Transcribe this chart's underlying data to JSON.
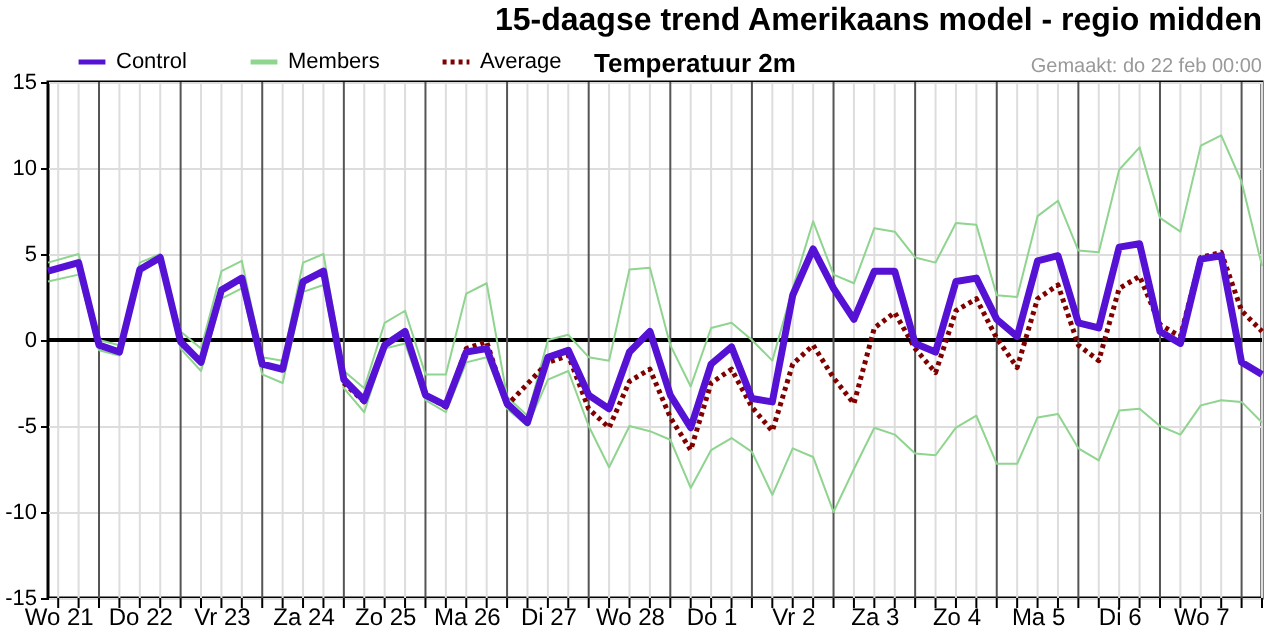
{
  "chart_data": {
    "type": "line",
    "title": "15-daagse trend Amerikaans model - regio midden",
    "subtitle": "Temperatuur 2m",
    "annotations": [
      "Gemaakt: do 22 feb 00:00"
    ],
    "x": [
      "--02-21T09:00",
      "--02-21T18:00",
      "--02-22T00:00",
      "--02-22T06:00",
      "--02-22T12:00",
      "--02-22T18:00",
      "--02-23T00:00",
      "--02-23T06:00",
      "--02-23T12:00",
      "--02-23T18:00",
      "--02-24T00:00",
      "--02-24T06:00",
      "--02-24T12:00",
      "--02-24T18:00",
      "--02-25T00:00",
      "--02-25T06:00",
      "--02-25T12:00",
      "--02-25T18:00",
      "--02-26T00:00",
      "--02-26T06:00",
      "--02-26T12:00",
      "--02-26T18:00",
      "--02-27T00:00",
      "--02-27T06:00",
      "--02-27T12:00",
      "--02-27T18:00",
      "--02-28T00:00",
      "--02-28T06:00",
      "--02-28T12:00",
      "--02-28T18:00",
      "--03-01T00:00",
      "--03-01T06:00",
      "--03-01T12:00",
      "--03-01T18:00",
      "--03-02T00:00",
      "--03-02T06:00",
      "--03-02T12:00",
      "--03-02T18:00",
      "--03-03T00:00",
      "--03-03T06:00",
      "--03-03T12:00",
      "--03-03T18:00",
      "--03-04T00:00",
      "--03-04T06:00",
      "--03-04T12:00",
      "--03-04T18:00",
      "--03-05T00:00",
      "--03-05T06:00",
      "--03-05T12:00",
      "--03-05T18:00",
      "--03-06T00:00",
      "--03-06T06:00",
      "--03-06T12:00",
      "--03-06T18:00",
      "--03-07T00:00",
      "--03-07T06:00",
      "--03-07T12:00",
      "--03-07T18:00",
      "--03-08T00:00",
      "--03-08T06:00"
    ],
    "series": [
      {
        "name": "Control",
        "color": "#5511d4",
        "line_style": "solid",
        "values": [
          4.0,
          4.5,
          -0.3,
          -0.7,
          4.1,
          4.8,
          -0.1,
          -1.3,
          2.9,
          3.6,
          -1.4,
          -1.7,
          3.4,
          4.0,
          -2.3,
          -3.5,
          -0.3,
          0.5,
          -3.2,
          -3.8,
          -0.7,
          -0.5,
          -3.7,
          -4.8,
          -1.0,
          -0.6,
          -3.2,
          -4.0,
          -0.7,
          0.5,
          -3.2,
          -5.1,
          -1.4,
          -0.4,
          -3.4,
          -3.6,
          2.6,
          5.3,
          3.0,
          1.2,
          4.0,
          4.0,
          -0.2,
          -0.7,
          3.4,
          3.6,
          1.2,
          0.2,
          4.6,
          4.9,
          1.0,
          0.7,
          5.4,
          5.6,
          0.5,
          -0.2,
          4.7,
          4.9,
          -1.3,
          -2.0
        ]
      },
      {
        "name": "Members",
        "color": "#8fd48f",
        "line_style": "solid",
        "values": [
          4.5,
          5.0,
          0.0,
          -0.3,
          4.5,
          5.0,
          0.5,
          -0.5,
          4.0,
          4.6,
          -1.0,
          -1.2,
          4.5,
          5.0,
          -1.8,
          -2.8,
          1.0,
          1.7,
          -2.0,
          -2.0,
          2.7,
          3.3,
          -3.3,
          -4.4,
          0.0,
          0.3,
          -1.0,
          -1.2,
          4.1,
          4.2,
          -0.3,
          -2.7,
          0.7,
          1.0,
          0.0,
          -1.2,
          3.0,
          6.9,
          3.8,
          3.3,
          6.5,
          6.3,
          4.8,
          4.5,
          6.8,
          6.7,
          2.6,
          2.5,
          7.2,
          8.1,
          5.2,
          5.1,
          9.9,
          11.2,
          7.1,
          6.3,
          11.3,
          11.9,
          9.2,
          4.3
        ]
      },
      {
        "color": "#8fd48f",
        "line_style": "solid",
        "values": [
          3.4,
          3.8,
          -0.6,
          -0.9,
          4.0,
          4.6,
          -0.5,
          -1.8,
          2.4,
          3.0,
          -2.0,
          -2.5,
          2.8,
          3.2,
          -2.8,
          -4.2,
          -0.5,
          -0.2,
          -3.5,
          -4.2,
          -1.3,
          -1.0,
          -4.0,
          -5.0,
          -2.3,
          -1.8,
          -5.0,
          -7.4,
          -5.0,
          -5.3,
          -5.8,
          -8.6,
          -6.4,
          -5.7,
          -6.5,
          -9.0,
          -6.3,
          -6.8,
          -10.0,
          -7.5,
          -5.1,
          -5.5,
          -6.6,
          -6.7,
          -5.1,
          -4.4,
          -7.2,
          -7.2,
          -4.5,
          -4.3,
          -6.3,
          -7.0,
          -4.1,
          -4.0,
          -5.0,
          -5.5,
          -3.8,
          -3.5,
          -3.6,
          -4.8
        ]
      },
      {
        "name": "Average",
        "color": "#800000",
        "line_style": "dotted",
        "values": [
          null,
          null,
          null,
          null,
          null,
          null,
          null,
          null,
          null,
          null,
          null,
          null,
          null,
          null,
          -2.5,
          -3.6,
          -0.3,
          0.5,
          -3.2,
          -3.9,
          -0.5,
          -0.1,
          -3.8,
          null,
          -1.3,
          -0.9,
          -4.0,
          -5.1,
          -2.4,
          -1.7,
          -4.5,
          -6.4,
          -2.5,
          -1.7,
          -3.9,
          -5.3,
          -1.4,
          -0.3,
          -2.2,
          -3.7,
          0.7,
          1.6,
          -0.5,
          -1.9,
          1.7,
          2.4,
          0.1,
          -1.6,
          2.4,
          3.2,
          -0.3,
          -1.2,
          3.0,
          3.7,
          0.9,
          0.2,
          4.8,
          5.1,
          1.7,
          0.5
        ]
      }
    ],
    "xlim": [
      "--02-21T09:00",
      "--03-08T06:00"
    ],
    "ylim": [
      -15,
      15
    ],
    "yticks": [
      -15,
      -10,
      -5,
      0,
      5,
      10,
      15
    ],
    "xticks": [
      {
        "value": "--02-21T12:00",
        "label": "Wo 21"
      },
      {
        "value": "--02-21T18:00",
        "label": null
      },
      {
        "value": "--02-22T06:00",
        "label": null
      },
      {
        "value": "--02-22T12:00",
        "label": "Do 22"
      },
      {
        "value": "--02-22T18:00",
        "label": null
      },
      {
        "value": "--02-23T06:00",
        "label": null
      },
      {
        "value": "--02-23T12:00",
        "label": "Vr 23"
      },
      {
        "value": "--02-23T18:00",
        "label": null
      },
      {
        "value": "--02-24T06:00",
        "label": null
      },
      {
        "value": "--02-24T12:00",
        "label": "Za 24"
      },
      {
        "value": "--02-24T18:00",
        "label": null
      },
      {
        "value": "--02-25T06:00",
        "label": null
      },
      {
        "value": "--02-25T12:00",
        "label": "Zo 25"
      },
      {
        "value": "--02-25T18:00",
        "label": null
      },
      {
        "value": "--02-26T06:00",
        "label": null
      },
      {
        "value": "--02-26T12:00",
        "label": "Ma 26"
      },
      {
        "value": "--02-26T18:00",
        "label": null
      },
      {
        "value": "--02-27T06:00",
        "label": null
      },
      {
        "value": "--02-27T12:00",
        "label": "Di 27"
      },
      {
        "value": "--02-27T18:00",
        "label": null
      },
      {
        "value": "--02-28T06:00",
        "label": null
      },
      {
        "value": "--02-28T12:00",
        "label": "Wo 28"
      },
      {
        "value": "--02-28T18:00",
        "label": null
      },
      {
        "value": "--03-01T06:00",
        "label": null
      },
      {
        "value": "--03-01T12:00",
        "label": "Do 1"
      },
      {
        "value": "--03-01T18:00",
        "label": null
      },
      {
        "value": "--03-02T06:00",
        "label": null
      },
      {
        "value": "--03-02T12:00",
        "label": "Vr 2"
      },
      {
        "value": "--03-02T18:00",
        "label": null
      },
      {
        "value": "--03-03T06:00",
        "label": null
      },
      {
        "value": "--03-03T12:00",
        "label": "Za 3"
      },
      {
        "value": "--03-03T18:00",
        "label": null
      },
      {
        "value": "--03-04T06:00",
        "label": null
      },
      {
        "value": "--03-04T12:00",
        "label": "Zo 4"
      },
      {
        "value": "--03-04T18:00",
        "label": null
      },
      {
        "value": "--03-05T06:00",
        "label": null
      },
      {
        "value": "--03-05T12:00",
        "label": "Ma 5"
      },
      {
        "value": "--03-05T18:00",
        "label": null
      },
      {
        "value": "--03-06T06:00",
        "label": null
      },
      {
        "value": "--03-06T12:00",
        "label": "Di 6"
      },
      {
        "value": "--03-06T18:00",
        "label": null
      },
      {
        "value": "--03-07T06:00",
        "label": null
      },
      {
        "value": "--03-07T12:00",
        "label": "Wo 7"
      },
      {
        "value": "--03-07T18:00",
        "label": null
      },
      {
        "value": "--03-08T06:00",
        "label": null
      }
    ],
    "ref_lines": [
      {
        "axis": "y",
        "value": 0,
        "color": "#000000"
      },
      {
        "axis": "x",
        "value": "--02-22T00:00",
        "color": "#555555"
      },
      {
        "axis": "x",
        "value": "--02-23T00:00",
        "color": "#555555"
      },
      {
        "axis": "x",
        "value": "--02-24T00:00",
        "color": "#555555"
      },
      {
        "axis": "x",
        "value": "--02-25T00:00",
        "color": "#555555"
      },
      {
        "axis": "x",
        "value": "--02-26T00:00",
        "color": "#555555"
      },
      {
        "axis": "x",
        "value": "--02-27T00:00",
        "color": "#555555"
      },
      {
        "axis": "x",
        "value": "--02-28T00:00",
        "color": "#555555"
      },
      {
        "axis": "x",
        "value": "--03-01T00:00",
        "color": "#555555"
      },
      {
        "axis": "x",
        "value": "--03-02T00:00",
        "color": "#555555"
      },
      {
        "axis": "x",
        "value": "--03-03T00:00",
        "color": "#555555"
      },
      {
        "axis": "x",
        "value": "--03-04T00:00",
        "color": "#555555"
      },
      {
        "axis": "x",
        "value": "--03-05T00:00",
        "color": "#555555"
      },
      {
        "axis": "x",
        "value": "--03-06T00:00",
        "color": "#555555"
      },
      {
        "axis": "x",
        "value": "--03-07T00:00",
        "color": "#555555"
      },
      {
        "axis": "x",
        "value": "--03-08T00:00",
        "color": "#555555"
      }
    ],
    "grid": true,
    "legend": "top left",
    "marker": "none"
  }
}
